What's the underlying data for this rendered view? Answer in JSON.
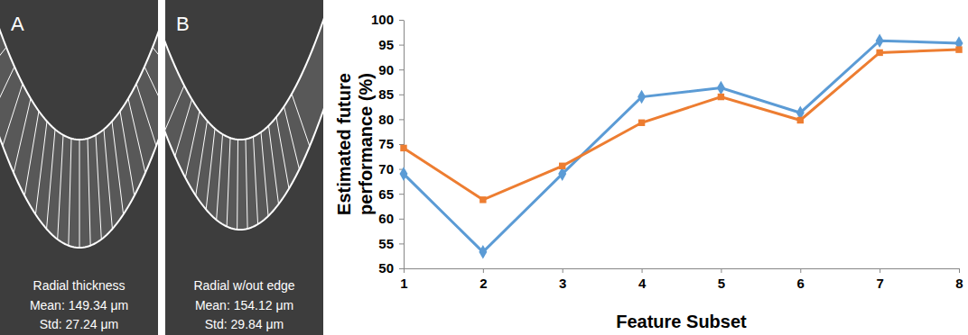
{
  "panels": [
    {
      "label": "A",
      "title": "Radial thickness",
      "lines": [
        "Mean: 149.34 μm",
        "Std: 27.24 μm"
      ]
    },
    {
      "label": "B",
      "title": "Radial w/out edge",
      "lines": [
        "Mean: 154.12 μm",
        "Std: 29.84 μm"
      ]
    }
  ],
  "chart_data": {
    "type": "line",
    "x_label": "Feature Subset",
    "y_label": [
      "Estimated future",
      "performance (%)"
    ],
    "x": [
      1,
      2,
      3,
      4,
      5,
      6,
      7,
      8
    ],
    "series": [
      {
        "color": "#5b9bd5",
        "marker": "diamond",
        "line_style": "solid",
        "values": [
          69,
          53.3,
          69,
          84.5,
          86.3,
          81.3,
          95.8,
          95.3
        ]
      },
      {
        "color": "#ed7d31",
        "marker": "square",
        "line_style": "solid",
        "values": [
          74.2,
          63.8,
          70.6,
          79.3,
          84.5,
          79.8,
          93.4,
          94
        ]
      }
    ],
    "xlim": [
      1,
      8
    ],
    "xticks": [
      1,
      2,
      3,
      4,
      5,
      6,
      7,
      8
    ],
    "ylim": [
      50,
      100
    ],
    "yticks": [
      50,
      55,
      60,
      65,
      70,
      75,
      80,
      85,
      90,
      95,
      100
    ],
    "grid": false
  }
}
